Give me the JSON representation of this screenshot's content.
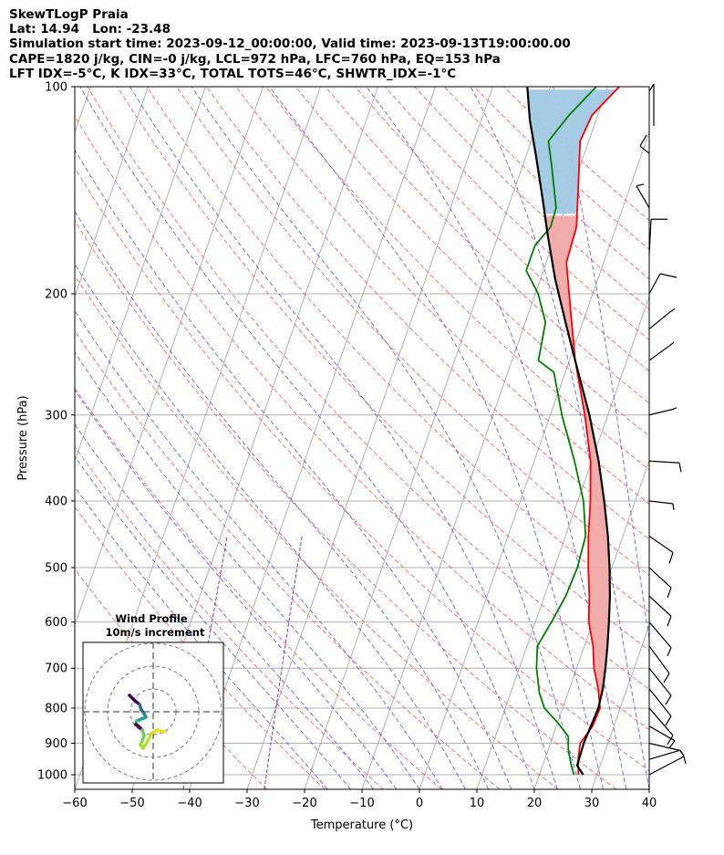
{
  "header": {
    "line1": "SkewTLogP Praia",
    "line2": "Lat: 14.94   Lon: -23.48",
    "line3": "Simulation start time: 2023-09-12_00:00:00, Valid time: 2023-09-13T19:00:00.00",
    "line4": "CAPE=1820 j/kg, CIN=-0 j/kg, LCL=972 hPa, LFC=760 hPa, EQ=153 hPa",
    "line5": "LFT IDX=-5°C, K IDX=33°C, TOTAL TOTS=46°C, SHWTR_IDX=-1°C"
  },
  "chart_data": {
    "type": "line",
    "subtype": "skew-t log-p",
    "xlabel": "Temperature (°C)",
    "ylabel": "Pressure (hPa)",
    "xlim": [
      -60,
      40
    ],
    "ylim": [
      1050,
      100
    ],
    "yscale": "log",
    "x_ticks": [
      -60,
      -50,
      -40,
      -30,
      -20,
      -10,
      0,
      10,
      20,
      30,
      40
    ],
    "y_ticks": [
      100,
      200,
      300,
      400,
      500,
      600,
      700,
      800,
      900,
      1000
    ],
    "grid": true,
    "series": [
      {
        "color": "#ff0000",
        "points": [
          [
            26.8,
            1000
          ],
          [
            25.8,
            950
          ],
          [
            25.2,
            900
          ],
          [
            26.3,
            850
          ],
          [
            26.5,
            800
          ],
          [
            25.0,
            750
          ],
          [
            23.0,
            700
          ],
          [
            21.5,
            650
          ],
          [
            19.3,
            600
          ],
          [
            17.8,
            550
          ],
          [
            15.9,
            500
          ],
          [
            14.0,
            450
          ],
          [
            12.2,
            400
          ],
          [
            9.8,
            350
          ],
          [
            6.0,
            300
          ],
          [
            1.0,
            250
          ],
          [
            -3.0,
            210
          ],
          [
            -6.5,
            180
          ],
          [
            -6.9,
            160
          ],
          [
            -9.0,
            140
          ],
          [
            -11.5,
            120
          ],
          [
            -11.0,
            110
          ],
          [
            -8.0,
            100
          ]
        ]
      },
      {
        "color": "#008000",
        "points": [
          [
            26.0,
            1000
          ],
          [
            25.0,
            970
          ],
          [
            23.5,
            920
          ],
          [
            22.7,
            880
          ],
          [
            20.0,
            840
          ],
          [
            16.8,
            800
          ],
          [
            15.0,
            760
          ],
          [
            13.0,
            700
          ],
          [
            11.8,
            650
          ],
          [
            12.8,
            600
          ],
          [
            13.7,
            550
          ],
          [
            14.0,
            500
          ],
          [
            13.5,
            450
          ],
          [
            11.0,
            400
          ],
          [
            7.0,
            350
          ],
          [
            2.0,
            300
          ],
          [
            -2.0,
            260
          ],
          [
            -5.4,
            250
          ],
          [
            -6.5,
            220
          ],
          [
            -9.5,
            200
          ],
          [
            -13.0,
            185
          ],
          [
            -13.0,
            170
          ],
          [
            -11.4,
            160
          ],
          [
            -11.6,
            150
          ],
          [
            -15.0,
            130
          ],
          [
            -17.0,
            120
          ],
          [
            -15.0,
            110
          ],
          [
            -12.0,
            100
          ]
        ]
      },
      {
        "color": "#000000",
        "points": [
          [
            27.6,
            1000
          ],
          [
            26.0,
            970
          ],
          [
            25.8,
            900
          ],
          [
            26.0,
            850
          ],
          [
            26.2,
            800
          ],
          [
            25.8,
            750
          ],
          [
            25.0,
            700
          ],
          [
            24.0,
            650
          ],
          [
            22.8,
            600
          ],
          [
            21.4,
            550
          ],
          [
            19.6,
            500
          ],
          [
            17.4,
            450
          ],
          [
            14.6,
            400
          ],
          [
            11.2,
            350
          ],
          [
            6.8,
            300
          ],
          [
            1.0,
            250
          ],
          [
            -3.0,
            220
          ],
          [
            -7.5,
            190
          ],
          [
            -11.3,
            165
          ],
          [
            -14.6,
            145
          ],
          [
            -18.5,
            125
          ],
          [
            -21.5,
            112
          ],
          [
            -24.0,
            100
          ]
        ]
      }
    ],
    "cape_shading": "#f0a8a8",
    "cin_shading": "#a0c8e4",
    "reference_lines": {
      "isotherms": "gray",
      "dry_adiabats": "#ff6666 dashed",
      "moist_adiabats": "#6666ff dashed",
      "mixing_ratio": "purple dashed"
    },
    "wind_barbs": {
      "levels_hPa": [
        100,
        125,
        150,
        175,
        200,
        225,
        250,
        300,
        350,
        400,
        450,
        500,
        550,
        600,
        650,
        700,
        750,
        800,
        850,
        900,
        950,
        1000
      ]
    },
    "inset": {
      "title": "Wind Profile",
      "subtitle": "10m/s increment",
      "rings": 3
    }
  }
}
